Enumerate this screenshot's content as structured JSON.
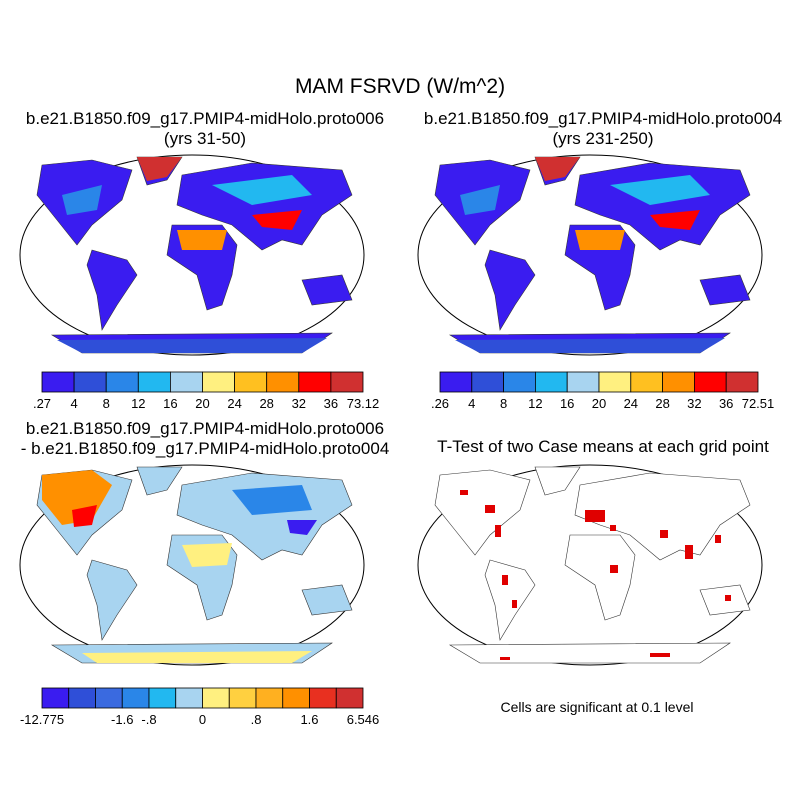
{
  "title": "MAM FSRVD (W/m^2)",
  "panels": [
    {
      "title": [
        "b.e21.B1850.f09_g17.PMIP4-midHolo.proto006",
        "(yrs 31-50)"
      ],
      "colorbar": {
        "labels": [
          ".27",
          "4",
          "8",
          "12",
          "16",
          "20",
          "24",
          "28",
          "32",
          "36",
          "73.12"
        ],
        "colors": [
          "#3a1cf0",
          "#2f4fd8",
          "#2a86e8",
          "#22b8f0",
          "#a8d4f0",
          "#fff080",
          "#ffc020",
          "#ff9000",
          "#ff0000",
          "#d03030"
        ]
      }
    },
    {
      "title": [
        "b.e21.B1850.f09_g17.PMIP4-midHolo.proto004",
        "(yrs 231-250)"
      ],
      "colorbar": {
        "labels": [
          ".26",
          "4",
          "8",
          "12",
          "16",
          "20",
          "24",
          "28",
          "32",
          "36",
          "72.51"
        ],
        "colors": [
          "#3a1cf0",
          "#2f4fd8",
          "#2a86e8",
          "#22b8f0",
          "#a8d4f0",
          "#fff080",
          "#ffc020",
          "#ff9000",
          "#ff0000",
          "#d03030"
        ]
      }
    },
    {
      "title": [
        "b.e21.B1850.f09_g17.PMIP4-midHolo.proto006",
        "- b.e21.B1850.f09_g17.PMIP4-midHolo.proto004"
      ],
      "colorbar": {
        "labels": [
          "-12.775",
          "-1.6",
          "-.8",
          "0",
          ".8",
          "1.6",
          "6.546"
        ],
        "colors": [
          "#3a1cf0",
          "#2f4fd8",
          "#3a6ae0",
          "#2a86e8",
          "#22b8f0",
          "#a8d4f0",
          "#fff080",
          "#ffd040",
          "#ffb020",
          "#ff9000",
          "#e83020",
          "#d03030"
        ]
      }
    },
    {
      "title": [
        "T-Test of two Case means at each grid point"
      ],
      "footnote": "Cells are significant at 0.1 level"
    }
  ]
}
